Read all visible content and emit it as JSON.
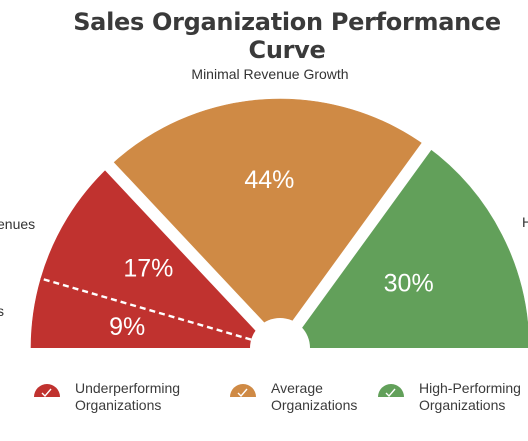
{
  "chart_data": {
    "type": "pie",
    "title": "Sales Organization Performance Curve",
    "segments": [
      {
        "label": "9%",
        "value": 9,
        "color": "#c0322f",
        "group": "underperforming"
      },
      {
        "label": "17%",
        "value": 17,
        "color": "#c0322f",
        "group": "underperforming"
      },
      {
        "label": "44%",
        "value": 44,
        "color": "#cf8a45",
        "group": "average"
      },
      {
        "label": "30%",
        "value": 30,
        "color": "#62a05a",
        "group": "high-performing"
      }
    ],
    "annotations": {
      "top": "Minimal Revenue Growth",
      "left_upper": "enues",
      "left_lower": "s",
      "right": "H"
    },
    "legend": [
      {
        "line1": "Underperforming",
        "line2": "Organizations",
        "color": "#c0322f"
      },
      {
        "line1": "Average",
        "line2": "Organizations",
        "color": "#cf8a45"
      },
      {
        "line1": "High-Performing",
        "line2": "Organizations",
        "color": "#62a05a"
      }
    ]
  }
}
